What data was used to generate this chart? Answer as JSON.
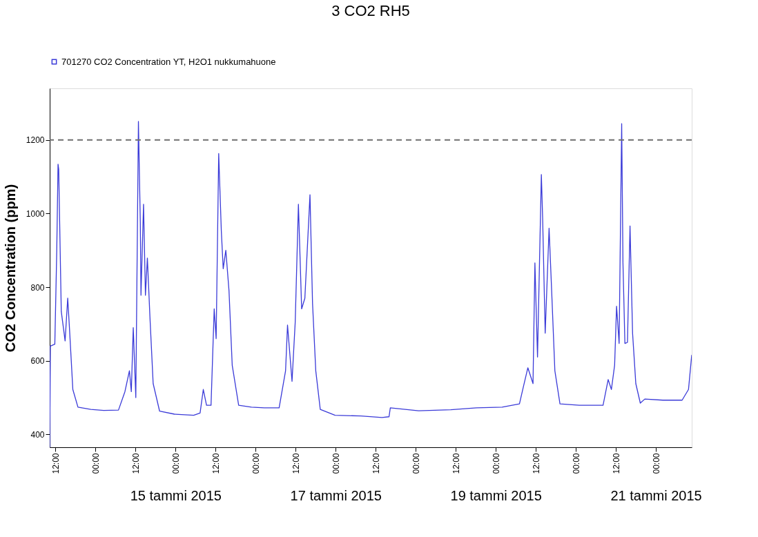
{
  "chart_data": {
    "type": "line",
    "title": "3 CO2 RH5",
    "ylabel": "CO2 Concentration (ppm)",
    "xlim": [
      "2015-01-13T10:16",
      "2015-01-21T10:45"
    ],
    "xticks": [
      {
        "value": "2015-01-13T12:00",
        "label": "12:00"
      },
      {
        "value": "2015-01-14T00:00",
        "label": "00:00"
      },
      {
        "value": "2015-01-14T12:00",
        "label": "12:00"
      },
      {
        "value": "2015-01-15T00:00",
        "label": "00:00"
      },
      {
        "value": "2015-01-15T12:00",
        "label": "12:00"
      },
      {
        "value": "2015-01-16T00:00",
        "label": "00:00"
      },
      {
        "value": "2015-01-16T12:00",
        "label": "12:00"
      },
      {
        "value": "2015-01-17T00:00",
        "label": "00:00"
      },
      {
        "value": "2015-01-17T12:00",
        "label": "12:00"
      },
      {
        "value": "2015-01-18T00:00",
        "label": "00:00"
      },
      {
        "value": "2015-01-18T12:00",
        "label": "12:00"
      },
      {
        "value": "2015-01-19T00:00",
        "label": "00:00"
      },
      {
        "value": "2015-01-19T12:00",
        "label": "12:00"
      },
      {
        "value": "2015-01-20T00:00",
        "label": "00:00"
      },
      {
        "value": "2015-01-20T12:00",
        "label": "12:00"
      },
      {
        "value": "2015-01-21T00:00",
        "label": "00:00"
      }
    ],
    "x2lim": [
      "2015-01-13T10:16",
      "2015-01-21T10:45"
    ],
    "x2ticks": [
      {
        "value": "2015-01-15T00:00",
        "label": "15 tammi 2015"
      },
      {
        "value": "2015-01-17T00:00",
        "label": "17 tammi 2015"
      },
      {
        "value": "2015-01-19T00:00",
        "label": "19 tammi 2015"
      },
      {
        "value": "2015-01-21T00:00",
        "label": "21 tammi 2015"
      }
    ],
    "ylim": [
      365,
      1340
    ],
    "yticks": [
      400,
      600,
      800,
      1000,
      1200
    ],
    "grid": false,
    "legend": "top left",
    "marker": "none",
    "line_style": "solid",
    "ref_lines": [
      {
        "axis": "y",
        "value": 1200,
        "color": "#6e6e6e",
        "line_style": "dashed"
      }
    ],
    "series": [
      {
        "name": "701270 CO2 Concentration YT, H2O1 nukkumahuone",
        "color": "#3a3ad8",
        "x": [
          "2015-01-13T10:16",
          "2015-01-13T10:28",
          "2015-01-13T11:48",
          "2015-01-13T12:23",
          "2015-01-13T12:46",
          "2015-01-13T12:58",
          "2015-01-13T13:44",
          "2015-01-13T14:53",
          "2015-01-13T15:40",
          "2015-01-13T16:14",
          "2015-01-13T17:12",
          "2015-01-13T18:44",
          "2015-01-13T22:36",
          "2015-01-14T02:27",
          "2015-01-14T06:53",
          "2015-01-14T08:49",
          "2015-01-14T10:10",
          "2015-01-14T10:44",
          "2015-01-14T11:19",
          "2015-01-14T12:05",
          "2015-01-14T12:52",
          "2015-01-14T13:26",
          "2015-01-14T13:38",
          "2015-01-14T14:24",
          "2015-01-14T14:58",
          "2015-01-14T15:33",
          "2015-01-14T16:19",
          "2015-01-14T17:17",
          "2015-01-14T19:13",
          "2015-01-14T23:39",
          "2015-01-15T05:26",
          "2015-01-15T07:21",
          "2015-01-15T08:19",
          "2015-01-15T09:17",
          "2015-01-15T10:38",
          "2015-01-15T11:35",
          "2015-01-15T12:10",
          "2015-01-15T12:56",
          "2015-01-15T13:43",
          "2015-01-15T14:17",
          "2015-01-15T15:04",
          "2015-01-15T16:01",
          "2015-01-15T16:59",
          "2015-01-15T18:55",
          "2015-01-15T22:46",
          "2015-01-16T02:37",
          "2015-01-16T07:03",
          "2015-01-16T08:59",
          "2015-01-16T09:34",
          "2015-01-16T10:55",
          "2015-01-16T11:52",
          "2015-01-16T12:50",
          "2015-01-16T13:48",
          "2015-01-16T14:46",
          "2015-01-16T16:18",
          "2015-01-16T17:04",
          "2015-01-16T18:02",
          "2015-01-16T19:23",
          "2015-01-16T23:49",
          "2015-01-17T07:31",
          "2015-01-17T13:53",
          "2015-01-17T16:00",
          "2015-01-17T16:23",
          "2015-01-18T00:52",
          "2015-01-18T10:30",
          "2015-01-18T18:12",
          "2015-01-19T01:54",
          "2015-01-19T07:06",
          "2015-01-19T08:16",
          "2015-01-19T09:37",
          "2015-01-19T11:10",
          "2015-01-19T11:44",
          "2015-01-19T12:31",
          "2015-01-19T13:40",
          "2015-01-19T14:03",
          "2015-01-19T14:49",
          "2015-01-19T15:59",
          "2015-01-19T16:45",
          "2015-01-19T17:43",
          "2015-01-19T19:15",
          "2015-01-20T01:02",
          "2015-01-20T08:10",
          "2015-01-20T09:42",
          "2015-01-20T10:40",
          "2015-01-20T11:38",
          "2015-01-20T12:13",
          "2015-01-20T12:59",
          "2015-01-20T13:45",
          "2015-01-20T14:08",
          "2015-01-20T14:43",
          "2015-01-20T15:29",
          "2015-01-20T16:15",
          "2015-01-20T17:01",
          "2015-01-20T17:59",
          "2015-01-20T19:20",
          "2015-01-20T20:41",
          "2015-01-21T02:05",
          "2015-01-21T07:52",
          "2015-01-21T09:47",
          "2015-01-21T10:45"
        ],
        "values": [
          365,
          640,
          645,
          900,
          1134,
          1120,
          734,
          654,
          770,
          682,
          522,
          474,
          468,
          465,
          466,
          516,
          573,
          516,
          690,
          500,
          1250,
          975,
          778,
          1025,
          778,
          879,
          719,
          538,
          463,
          455,
          452,
          458,
          522,
          479,
          479,
          741,
          660,
          1163,
          953,
          850,
          900,
          791,
          588,
          479,
          474,
          472,
          472,
          573,
          697,
          544,
          704,
          1025,
          741,
          770,
          1051,
          756,
          573,
          468,
          452,
          450,
          446,
          448,
          472,
          464,
          467,
          472,
          474,
          483,
          529,
          581,
          538,
          866,
          610,
          1106,
          988,
          675,
          960,
          791,
          573,
          483,
          479,
          479,
          549,
          522,
          588,
          748,
          647,
          1244,
          866,
          647,
          650,
          966,
          675,
          538,
          485,
          496,
          493,
          493,
          522,
          616
        ]
      }
    ]
  }
}
